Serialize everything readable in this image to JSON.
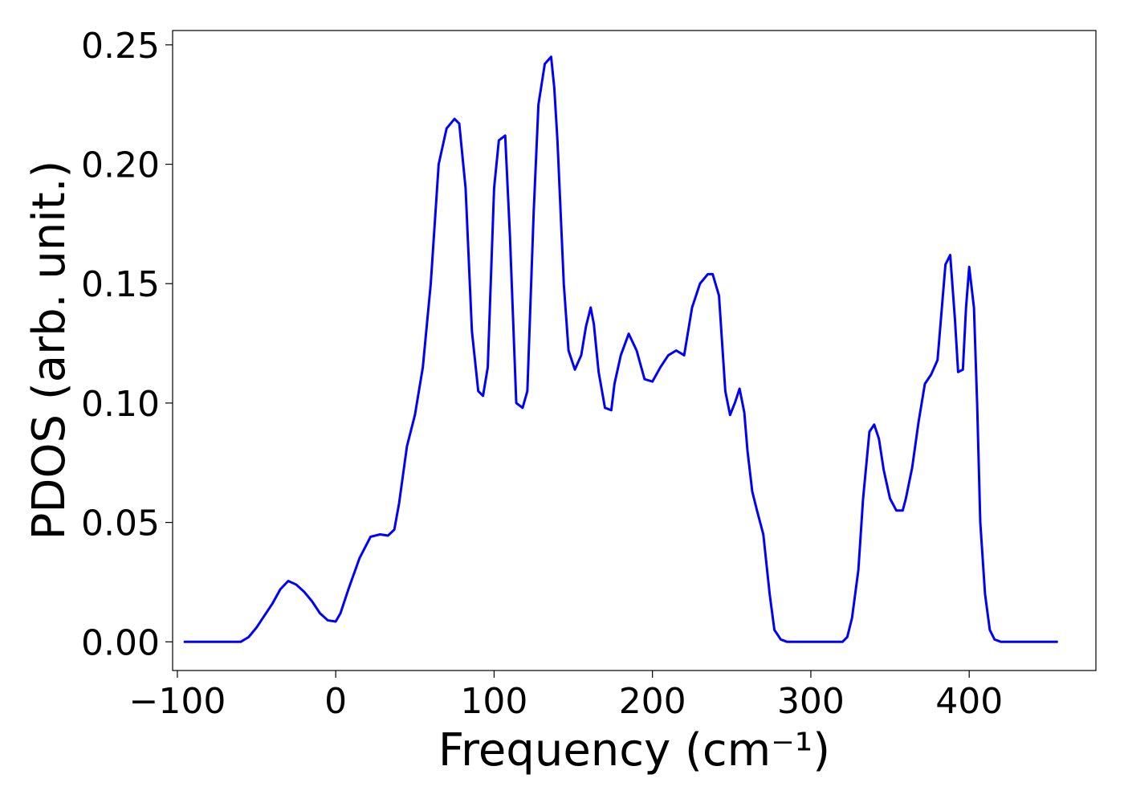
{
  "chart_data": {
    "type": "line",
    "title": "",
    "xlabel": "Frequency (cm⁻¹)",
    "ylabel": "PDOS (arb. unit.)",
    "xlim": [
      -103,
      480
    ],
    "ylim": [
      -0.012,
      0.256
    ],
    "xticks": [
      -100,
      0,
      100,
      200,
      300,
      400
    ],
    "xtick_labels": [
      "−100",
      "0",
      "100",
      "200",
      "300",
      "400"
    ],
    "yticks": [
      0.0,
      0.05,
      0.1,
      0.15,
      0.2,
      0.25
    ],
    "ytick_labels": [
      "0.00",
      "0.05",
      "0.10",
      "0.15",
      "0.20",
      "0.25"
    ],
    "grid": false,
    "series": [
      {
        "color": "#0000ff",
        "x": [
          -96,
          -60,
          -55,
          -50,
          -45,
          -40,
          -35,
          -30,
          -25,
          -20,
          -15,
          -10,
          -5,
          0,
          3,
          8,
          15,
          22,
          28,
          33,
          37,
          40,
          45,
          50,
          55,
          60,
          65,
          70,
          75,
          78,
          82,
          86,
          90,
          93,
          96,
          100,
          103,
          107,
          110,
          114,
          118,
          121,
          125,
          128,
          132,
          136,
          138,
          140,
          144,
          147,
          151,
          155,
          158,
          161,
          163,
          166,
          170,
          174,
          176,
          180,
          185,
          190,
          195,
          200,
          205,
          210,
          215,
          220,
          225,
          230,
          235,
          238,
          242,
          246,
          249,
          252,
          255,
          258,
          260,
          263,
          266,
          270,
          274,
          277,
          281,
          285,
          290,
          300,
          310,
          320,
          323,
          326,
          330,
          333,
          337,
          340,
          343,
          346,
          350,
          354,
          358,
          360,
          364,
          368,
          372,
          376,
          380,
          385,
          388,
          391,
          393,
          396,
          398,
          400,
          403,
          405,
          407,
          410,
          413,
          416,
          420,
          425,
          430,
          456
        ],
        "y": [
          0.0,
          0.0,
          0.002,
          0.006,
          0.011,
          0.016,
          0.022,
          0.0255,
          0.024,
          0.021,
          0.017,
          0.012,
          0.009,
          0.0085,
          0.012,
          0.022,
          0.035,
          0.044,
          0.045,
          0.0445,
          0.047,
          0.058,
          0.082,
          0.095,
          0.115,
          0.15,
          0.2,
          0.215,
          0.219,
          0.217,
          0.19,
          0.13,
          0.105,
          0.103,
          0.115,
          0.19,
          0.21,
          0.212,
          0.17,
          0.1,
          0.098,
          0.105,
          0.18,
          0.225,
          0.242,
          0.245,
          0.232,
          0.21,
          0.15,
          0.122,
          0.114,
          0.12,
          0.132,
          0.14,
          0.133,
          0.113,
          0.098,
          0.097,
          0.108,
          0.12,
          0.129,
          0.122,
          0.11,
          0.109,
          0.115,
          0.12,
          0.122,
          0.12,
          0.14,
          0.15,
          0.154,
          0.154,
          0.145,
          0.105,
          0.095,
          0.1,
          0.106,
          0.096,
          0.08,
          0.063,
          0.055,
          0.045,
          0.02,
          0.005,
          0.001,
          0.0,
          0.0,
          0.0,
          0.0,
          0.0,
          0.002,
          0.01,
          0.03,
          0.06,
          0.088,
          0.091,
          0.085,
          0.072,
          0.06,
          0.055,
          0.055,
          0.06,
          0.073,
          0.092,
          0.108,
          0.112,
          0.118,
          0.158,
          0.162,
          0.135,
          0.113,
          0.114,
          0.14,
          0.157,
          0.14,
          0.1,
          0.05,
          0.02,
          0.005,
          0.001,
          0.0,
          0.0,
          0.0,
          0.0
        ]
      }
    ]
  }
}
